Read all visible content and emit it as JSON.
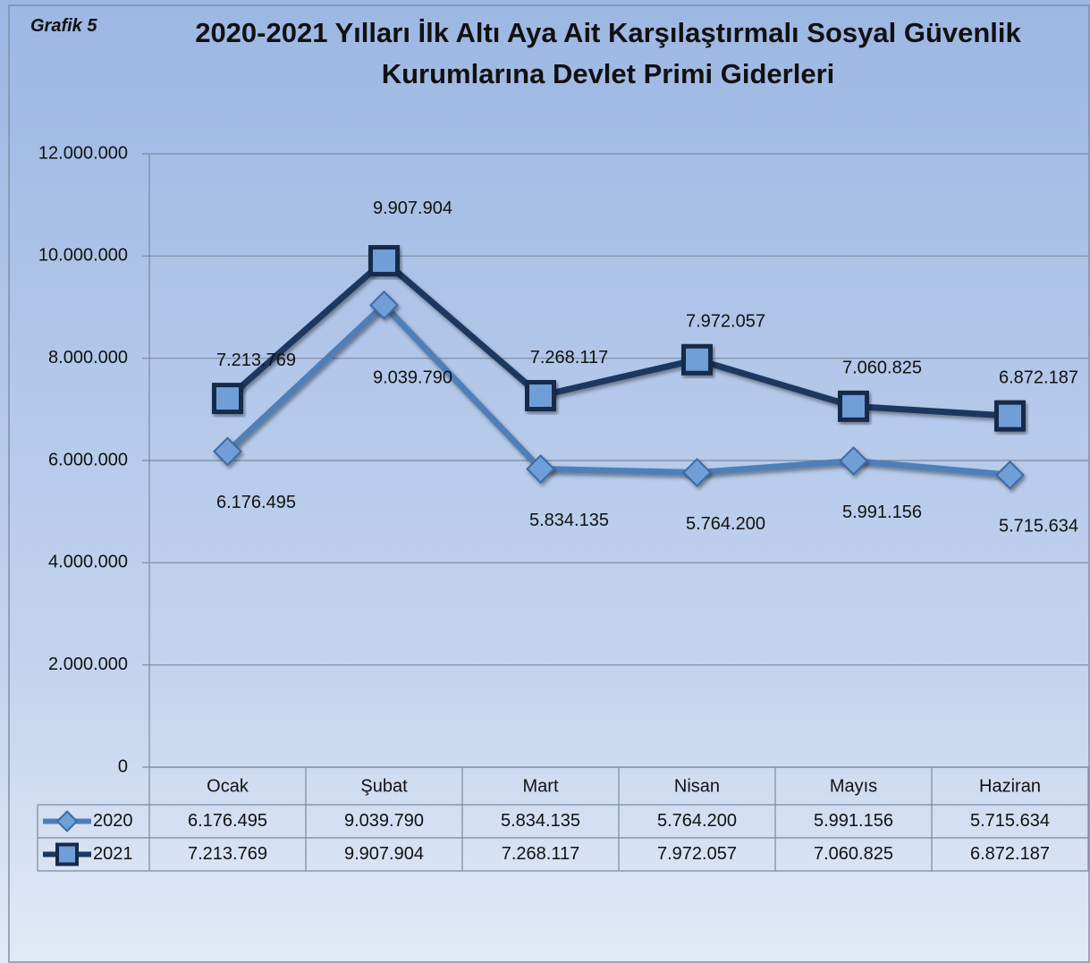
{
  "label": "Grafik 5",
  "chart_data": {
    "type": "line",
    "title": "2020-2021 Yılları İlk Altı Aya Ait Karşılaştırmalı Sosyal Güvenlik Kurumlarına Devlet Primi Giderleri",
    "categories": [
      "Ocak",
      "Şubat",
      "Mart",
      "Nisan",
      "Mayıs",
      "Haziran"
    ],
    "series": [
      {
        "name": "2020",
        "color": "#4f7fb8",
        "marker": "diamond",
        "values": [
          6176495,
          9039790,
          5834135,
          5764200,
          5991156,
          5715634
        ],
        "value_labels": [
          "6.176.495",
          "9.039.790",
          "5.834.135",
          "5.764.200",
          "5.991.156",
          "5.715.634"
        ]
      },
      {
        "name": "2021",
        "color": "#1c3760",
        "marker": "square",
        "values": [
          7213769,
          9907904,
          7268117,
          7972057,
          7060825,
          6872187
        ],
        "value_labels": [
          "7.213.769",
          "9.907.904",
          "7.268.117",
          "7.972.057",
          "7.060.825",
          "6.872.187"
        ]
      }
    ],
    "ylim": [
      0,
      12000000
    ],
    "yticks": [
      0,
      {
        "value": 2000000,
        "label": "2.000.000"
      },
      {
        "value": 4000000,
        "label": "4.000.000"
      },
      {
        "value": 6000000,
        "label": "6.000.000"
      },
      {
        "value": 8000000,
        "label": "8.000.000"
      },
      {
        "value": 10000000,
        "label": "10.000.000"
      },
      {
        "value": 12000000,
        "label": "12.000.000"
      }
    ],
    "grid": true,
    "data_table": true
  }
}
